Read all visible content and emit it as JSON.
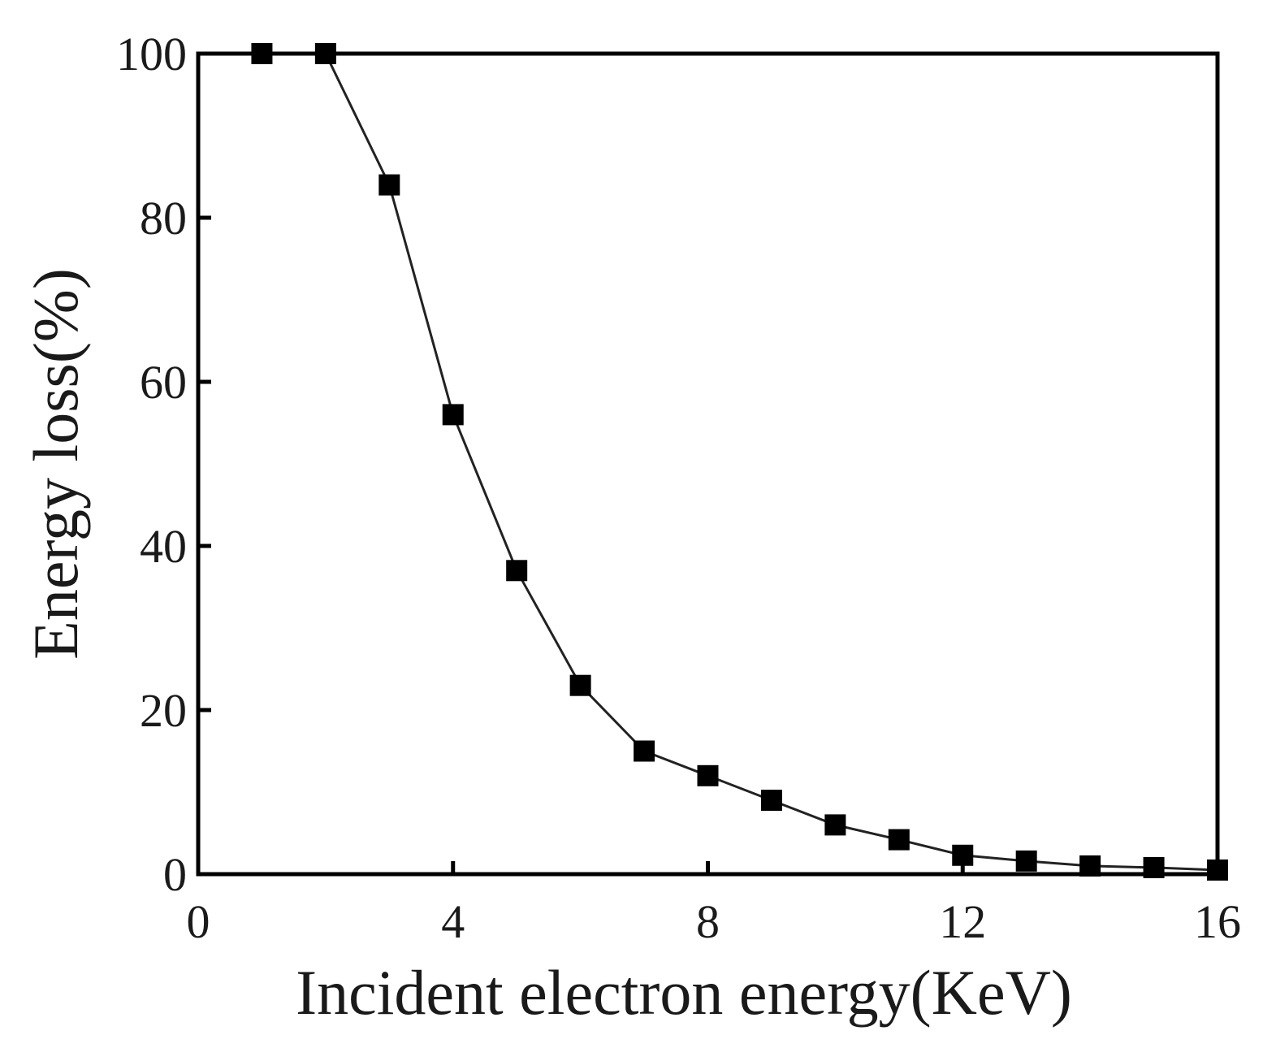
{
  "chart_data": {
    "type": "line",
    "title": "",
    "xlabel": "Incident electron energy(KeV)",
    "ylabel": "Energy loss(%)",
    "xlim": [
      0,
      16
    ],
    "ylim": [
      0,
      100
    ],
    "x_ticks": [
      "0",
      "4",
      "8",
      "12",
      "16"
    ],
    "y_ticks": [
      "0",
      "20",
      "40",
      "60",
      "80",
      "100"
    ],
    "grid": false,
    "marker": "square",
    "series": [
      {
        "x": [
          1,
          2,
          3,
          4,
          5,
          6,
          7,
          8,
          9,
          10,
          11,
          12,
          13,
          14,
          15,
          16
        ],
        "y": [
          100,
          100,
          84,
          56,
          37,
          23,
          15,
          12,
          9,
          6,
          4.2,
          2.3,
          1.6,
          1.0,
          0.8,
          0.5
        ]
      }
    ]
  }
}
